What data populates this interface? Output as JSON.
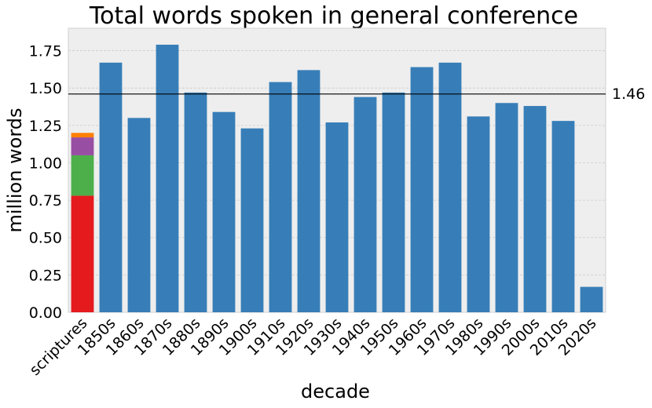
{
  "chart_data": {
    "type": "bar",
    "title": "Total words spoken in general conference",
    "xlabel": "decade",
    "ylabel": "million words",
    "ylim": [
      0,
      1.9
    ],
    "yticks": [
      "0.00",
      "0.25",
      "0.50",
      "0.75",
      "1.00",
      "1.25",
      "1.50",
      "1.75"
    ],
    "ytick_values": [
      0,
      0.25,
      0.5,
      0.75,
      1.0,
      1.25,
      1.5,
      1.75
    ],
    "grid": true,
    "reference_line": {
      "value": 1.46,
      "label": "1.46"
    },
    "categories": [
      "scriptures",
      "1850s",
      "1860s",
      "1870s",
      "1880s",
      "1890s",
      "1900s",
      "1910s",
      "1920s",
      "1930s",
      "1940s",
      "1950s",
      "1960s",
      "1970s",
      "1980s",
      "1990s",
      "2000s",
      "2010s",
      "2020s"
    ],
    "values": [
      null,
      1.67,
      1.3,
      1.79,
      1.47,
      1.34,
      1.23,
      1.54,
      1.62,
      1.27,
      1.44,
      1.47,
      1.64,
      1.67,
      1.31,
      1.4,
      1.38,
      1.28,
      0.17
    ],
    "stacked_bar": {
      "category": "scriptures",
      "segments": [
        {
          "value": 0.78,
          "color": "#e41a1c"
        },
        {
          "value": 0.27,
          "color": "#4daf4a"
        },
        {
          "value": 0.12,
          "color": "#984ea3"
        },
        {
          "value": 0.03,
          "color": "#ff7f00"
        }
      ]
    },
    "colors": {
      "bar": "#377eb8",
      "background": "#eeeeee",
      "grid": "#cccccc",
      "reference": "#000000"
    }
  }
}
